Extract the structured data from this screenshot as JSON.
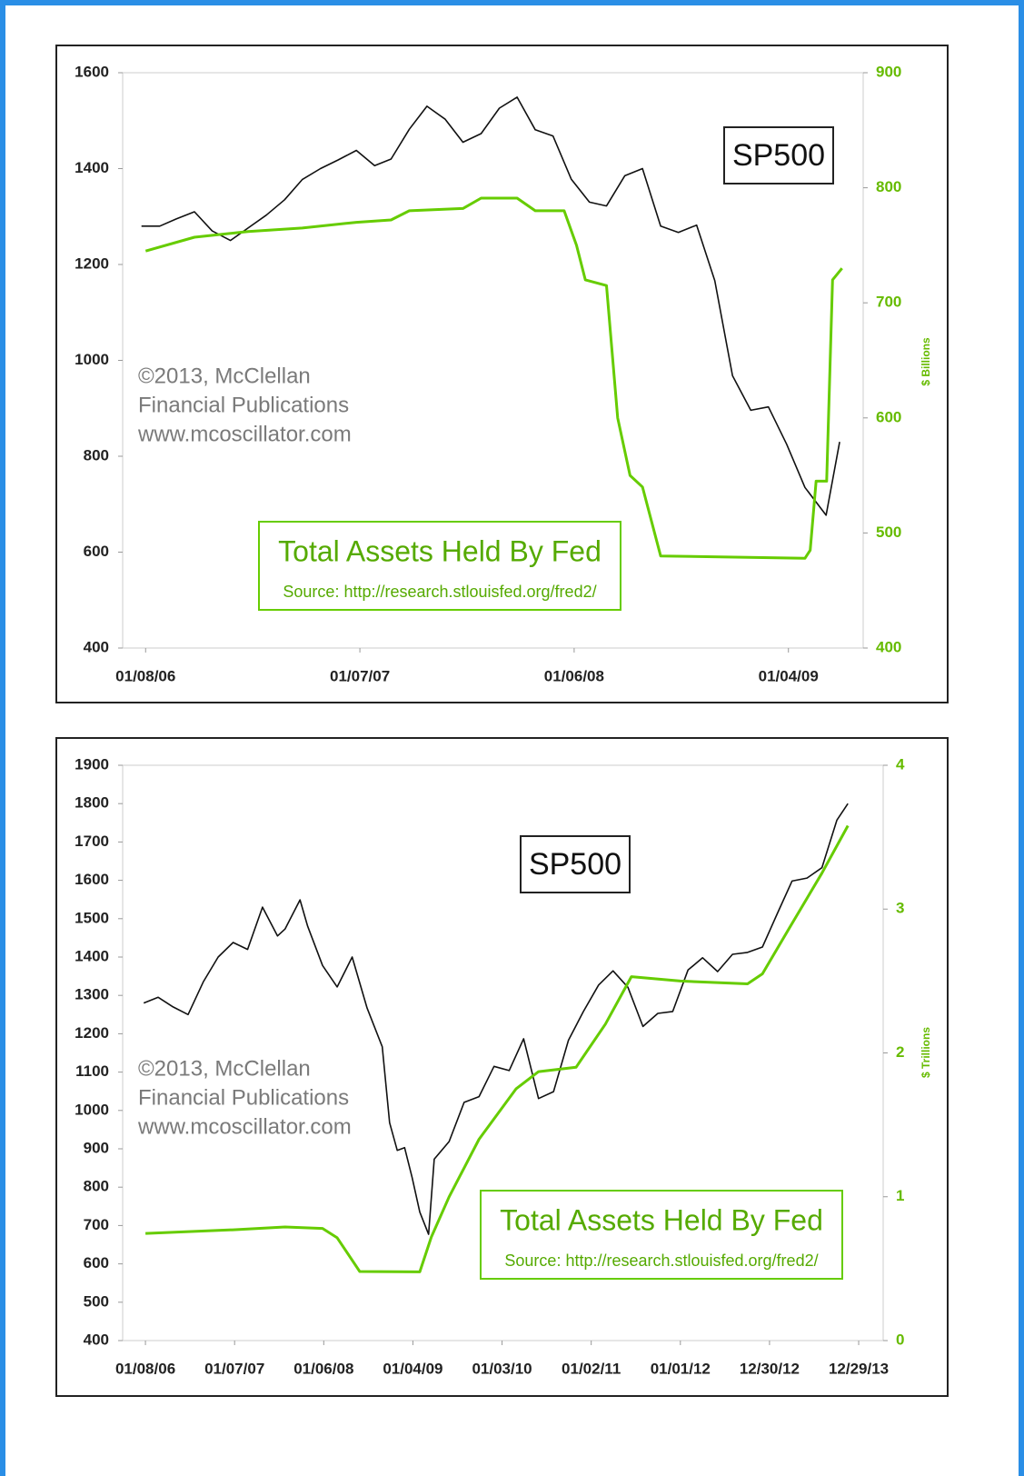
{
  "chart_data": [
    {
      "type": "line",
      "notes": [
        "©2013, McClellan",
        "Financial Publications",
        "www.mcoscillator.com"
      ],
      "source": "Source: http://research.stlouisfed.org/fred2/",
      "y2label": "$ Billions",
      "xlim": [
        "2005-11-30",
        "2009-05-11"
      ],
      "xticks": [
        {
          "value": "2006-01-08",
          "label": "01/08/06"
        },
        {
          "value": "2007-01-07",
          "label": "01/07/07"
        },
        {
          "value": "2008-01-06",
          "label": "01/06/08"
        },
        {
          "value": "2009-01-04",
          "label": "01/04/09"
        }
      ],
      "ylim": [
        400,
        1600
      ],
      "yticks": [
        400,
        600,
        800,
        1000,
        1200,
        1400,
        1600
      ],
      "y2lim": [
        400,
        900
      ],
      "y2ticks": [
        400,
        500,
        600,
        700,
        800,
        900
      ],
      "series": [
        {
          "name": "SP500",
          "color": "#111111",
          "x": [
            "2006-01-01",
            "2006-02-01",
            "2006-03-01",
            "2006-04-01",
            "2006-05-01",
            "2006-06-01",
            "2006-07-01",
            "2006-08-01",
            "2006-09-01",
            "2006-10-01",
            "2006-11-01",
            "2006-12-01",
            "2007-01-01",
            "2007-02-01",
            "2007-03-01",
            "2007-04-01",
            "2007-05-01",
            "2007-06-01",
            "2007-07-01",
            "2007-08-01",
            "2007-09-01",
            "2007-10-01",
            "2007-11-01",
            "2007-12-01",
            "2008-01-01",
            "2008-02-01",
            "2008-03-01",
            "2008-04-01",
            "2008-05-01",
            "2008-06-01",
            "2008-07-01",
            "2008-08-01",
            "2008-09-01",
            "2008-10-01",
            "2008-11-01",
            "2008-12-01",
            "2009-01-01",
            "2009-02-01",
            "2009-03-09",
            "2009-04-01"
          ],
          "values": [
            1280,
            1280,
            1295,
            1310,
            1270,
            1250,
            1276,
            1303,
            1335,
            1377,
            1400,
            1418,
            1438,
            1406,
            1420,
            1482,
            1530,
            1503,
            1455,
            1473,
            1526,
            1549,
            1481,
            1468,
            1378,
            1330,
            1322,
            1385,
            1400,
            1280,
            1267,
            1282,
            1166,
            968,
            896,
            903,
            825,
            735,
            677,
            830
          ]
        },
        {
          "name": "Total Assets Held By Fed",
          "color": "#66cc00",
          "axis": "y2",
          "x": [
            "2006-01-08",
            "2006-04-01",
            "2006-07-01",
            "2006-10-01",
            "2007-01-01",
            "2007-03-01",
            "2007-04-01",
            "2007-07-01",
            "2007-08-01",
            "2007-10-01",
            "2007-11-01",
            "2007-12-20",
            "2008-01-10",
            "2008-01-25",
            "2008-03-01",
            "2008-03-20",
            "2008-04-10",
            "2008-05-01",
            "2008-06-01",
            "2009-02-01",
            "2009-02-10",
            "2009-02-20",
            "2009-03-10",
            "2009-03-20",
            "2009-04-05"
          ],
          "values": [
            745,
            757,
            762,
            765,
            770,
            772,
            780,
            782,
            791,
            791,
            780,
            780,
            750,
            720,
            715,
            600,
            550,
            540,
            480,
            478,
            485,
            545,
            545,
            720,
            730
          ]
        }
      ]
    },
    {
      "type": "line",
      "notes": [
        "©2013, McClellan",
        "Financial Publications",
        "www.mcoscillator.com"
      ],
      "source": "Source: http://research.stlouisfed.org/fred2/",
      "y2label": "$ Trillions",
      "xlim": [
        "2005-10-07",
        "2014-04-08"
      ],
      "xticks": [
        {
          "value": "2006-01-08",
          "label": "01/08/06"
        },
        {
          "value": "2007-01-07",
          "label": "01/07/07"
        },
        {
          "value": "2008-01-06",
          "label": "01/06/08"
        },
        {
          "value": "2009-01-04",
          "label": "01/04/09"
        },
        {
          "value": "2010-01-03",
          "label": "01/03/10"
        },
        {
          "value": "2011-01-02",
          "label": "01/02/11"
        },
        {
          "value": "2012-01-01",
          "label": "01/01/12"
        },
        {
          "value": "2012-12-30",
          "label": "12/30/12"
        },
        {
          "value": "2013-12-29",
          "label": "12/29/13"
        }
      ],
      "ylim": [
        400,
        1900
      ],
      "yticks": [
        400,
        500,
        600,
        700,
        800,
        900,
        1000,
        1100,
        1200,
        1300,
        1400,
        1500,
        1600,
        1700,
        1800,
        1900
      ],
      "y2lim": [
        0,
        4
      ],
      "y2ticks": [
        0,
        1,
        2,
        3,
        4
      ],
      "series": [
        {
          "name": "SP500",
          "color": "#111111",
          "x": [
            "2006-01-01",
            "2006-03-01",
            "2006-05-01",
            "2006-07-01",
            "2006-09-01",
            "2006-11-01",
            "2007-01-01",
            "2007-03-01",
            "2007-05-01",
            "2007-07-01",
            "2007-08-01",
            "2007-10-01",
            "2007-11-01",
            "2008-01-01",
            "2008-03-01",
            "2008-05-01",
            "2008-07-01",
            "2008-09-01",
            "2008-10-01",
            "2008-11-01",
            "2008-12-01",
            "2009-01-01",
            "2009-02-01",
            "2009-03-09",
            "2009-04-01",
            "2009-06-01",
            "2009-08-01",
            "2009-10-01",
            "2009-12-01",
            "2010-02-01",
            "2010-04-01",
            "2010-06-01",
            "2010-08-01",
            "2010-10-01",
            "2010-12-01",
            "2011-02-01",
            "2011-04-01",
            "2011-06-01",
            "2011-08-01",
            "2011-10-01",
            "2011-12-01",
            "2012-02-01",
            "2012-04-01",
            "2012-06-01",
            "2012-08-01",
            "2012-10-01",
            "2012-12-01",
            "2013-02-01",
            "2013-04-01",
            "2013-06-01",
            "2013-08-01",
            "2013-10-01",
            "2013-11-15"
          ],
          "values": [
            1280,
            1295,
            1270,
            1250,
            1335,
            1400,
            1438,
            1420,
            1530,
            1455,
            1473,
            1549,
            1481,
            1378,
            1322,
            1400,
            1267,
            1166,
            968,
            896,
            903,
            825,
            735,
            677,
            873,
            919,
            1021,
            1036,
            1115,
            1104,
            1187,
            1031,
            1049,
            1183,
            1258,
            1327,
            1364,
            1321,
            1219,
            1253,
            1258,
            1366,
            1398,
            1362,
            1407,
            1412,
            1426,
            1515,
            1598,
            1606,
            1633,
            1757,
            1800
          ]
        },
        {
          "name": "Total Assets Held By Fed",
          "color": "#66cc00",
          "axis": "y2",
          "x": [
            "2006-01-08",
            "2007-01-01",
            "2007-08-01",
            "2008-01-01",
            "2008-03-01",
            "2008-06-01",
            "2009-02-01",
            "2009-03-20",
            "2009-06-01",
            "2009-10-01",
            "2010-03-01",
            "2010-06-01",
            "2010-11-01",
            "2011-03-01",
            "2011-06-15",
            "2012-01-01",
            "2012-10-01",
            "2012-12-01",
            "2013-04-01",
            "2013-08-01",
            "2013-11-15"
          ],
          "values": [
            0.745,
            0.77,
            0.79,
            0.78,
            0.715,
            0.48,
            0.478,
            0.72,
            1.0,
            1.4,
            1.75,
            1.87,
            1.9,
            2.2,
            2.53,
            2.5,
            2.48,
            2.55,
            2.9,
            3.25,
            3.58
          ]
        }
      ]
    }
  ]
}
